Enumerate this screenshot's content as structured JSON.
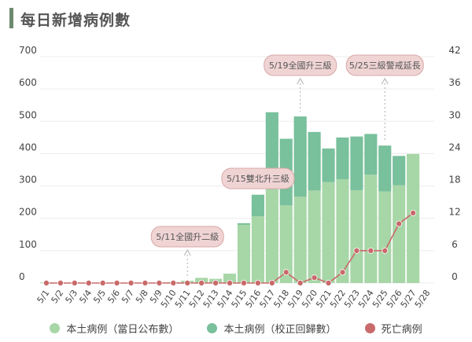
{
  "title": "每日新增病例數",
  "colors": {
    "local_announced": "#a7d6a7",
    "local_corrected": "#79c09c",
    "deaths": "#c96a6a",
    "annotation_fill": "#f0d4d4",
    "annotation_border": "#d9a8a8",
    "grid": "#ececec",
    "title_bar": "#6c8a6f"
  },
  "legend": {
    "announced": "本土病例（當日公布數）",
    "corrected": "本土病例（校正回歸數）",
    "deaths": "死亡病例"
  },
  "chart_data": {
    "type": "bar",
    "categories": [
      "5/1",
      "5/2",
      "5/3",
      "5/4",
      "5/5",
      "5/6",
      "5/7",
      "5/8",
      "5/9",
      "5/10",
      "5/11",
      "5/12",
      "5/13",
      "5/14",
      "5/15",
      "5/16",
      "5/17",
      "5/18",
      "5/19",
      "5/20",
      "5/21",
      "5/22",
      "5/23",
      "5/24",
      "5/25",
      "5/26",
      "5/27",
      "5/28"
    ],
    "stacked": true,
    "series": [
      {
        "name": "本土病例（當日公布數）",
        "axis": "left",
        "type": "bar",
        "values": [
          2,
          0,
          0,
          0,
          0,
          0,
          0,
          0,
          0,
          3,
          7,
          16,
          13,
          29,
          180,
          206,
          333,
          240,
          267,
          286,
          312,
          321,
          287,
          335,
          283,
          302,
          399,
          0
        ]
      },
      {
        "name": "本土病例（校正回歸數）",
        "axis": "left",
        "type": "bar",
        "values": [
          0,
          0,
          0,
          0,
          0,
          0,
          0,
          0,
          0,
          0,
          0,
          0,
          0,
          0,
          5,
          67,
          195,
          206,
          248,
          181,
          104,
          129,
          166,
          126,
          142,
          91,
          0,
          0
        ]
      },
      {
        "name": "死亡病例",
        "axis": "right",
        "type": "line",
        "values": [
          0,
          0,
          0,
          0,
          0,
          0,
          0,
          0,
          0,
          0,
          0,
          0,
          0,
          0,
          0,
          0,
          0,
          2,
          0,
          1,
          0,
          2,
          6,
          6,
          6,
          11,
          13,
          null
        ]
      }
    ],
    "left_axis": {
      "ticks": [
        0,
        100,
        200,
        300,
        400,
        500,
        600,
        700
      ],
      "ylim": [
        0,
        700
      ]
    },
    "right_axis": {
      "ticks": [
        0,
        6,
        12,
        18,
        24,
        30,
        36,
        42
      ],
      "ylim": [
        0,
        42
      ]
    },
    "grid": true,
    "legend_position": "bottom",
    "annotations": [
      {
        "text": "5/11全國升二級",
        "category": "5/11"
      },
      {
        "text": "5/15雙北升三級",
        "category": "5/16"
      },
      {
        "text": "5/19全國升三級",
        "category": "5/19"
      },
      {
        "text": "5/25三級警戒延長",
        "category": "5/25"
      }
    ]
  }
}
